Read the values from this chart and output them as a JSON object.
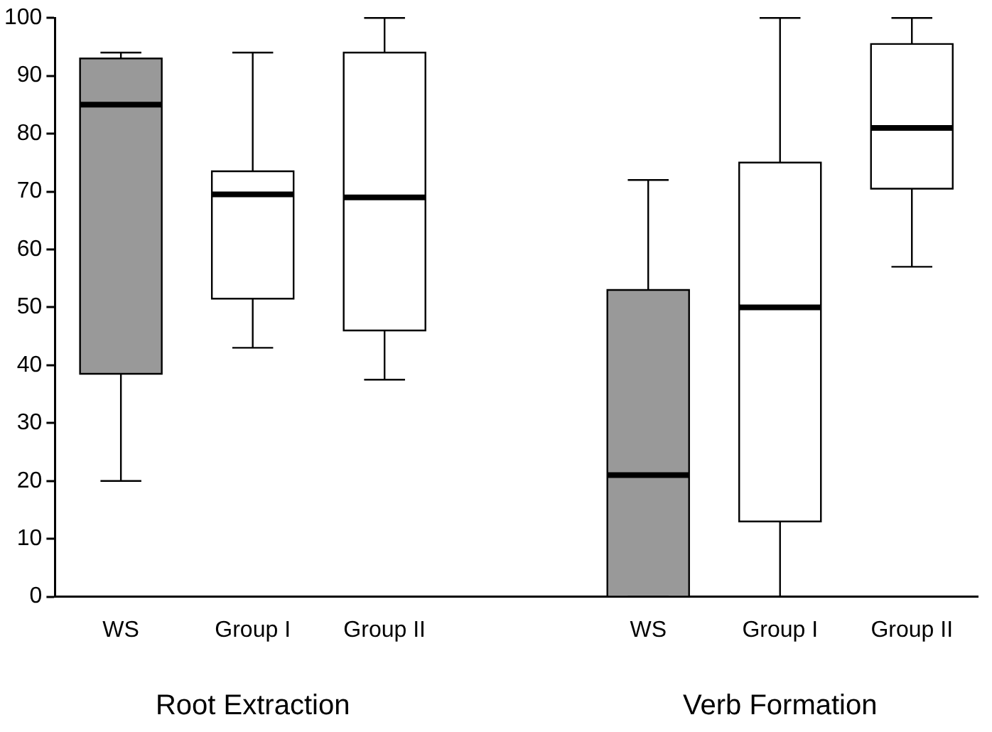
{
  "chart_data": {
    "type": "box",
    "categories": [
      "WS",
      "Group I",
      "Group II",
      null,
      "WS",
      "Group I",
      "Group II"
    ],
    "boxes": [
      {
        "low": 20,
        "q1": 38.5,
        "median": 85,
        "q3": 93,
        "high": 94
      },
      {
        "low": 43,
        "q1": 51.5,
        "median": 69.5,
        "q3": 73.5,
        "high": 94
      },
      {
        "low": 37.5,
        "q1": 46,
        "median": 69,
        "q3": 94,
        "high": 100
      },
      null,
      {
        "low": 0,
        "q1": 0,
        "median": 21,
        "q3": 53,
        "high": 72
      },
      {
        "low": 0,
        "q1": 13,
        "median": 50,
        "q3": 75,
        "high": 100
      },
      {
        "low": 57,
        "q1": 70.5,
        "median": 81,
        "q3": 95.5,
        "high": 100
      }
    ],
    "colors": [
      "#999999",
      "#ffffff",
      "#ffffff",
      null,
      "#999999",
      "#ffffff",
      "#ffffff"
    ],
    "ylim": [
      0,
      100
    ],
    "yticks": [
      0,
      10,
      20,
      30,
      40,
      50,
      60,
      70,
      80,
      90,
      100
    ],
    "grid": false,
    "legend": false,
    "annotations": [
      "Root Extraction",
      "Verb Formation"
    ]
  }
}
